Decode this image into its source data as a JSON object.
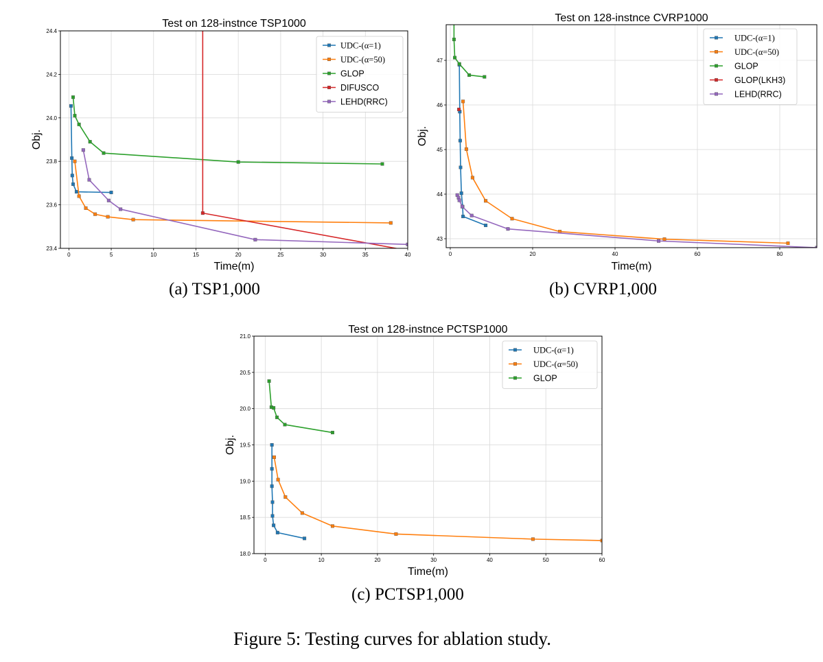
{
  "colors": {
    "blue": "#1f77b4",
    "orange": "#ff7f0e",
    "green": "#2ca02c",
    "red": "#d62728",
    "purple": "#9467bd",
    "grid": "#d9d9d9"
  },
  "figure_caption": "Figure 5: Testing curves for ablation study.",
  "chart_data": [
    {
      "id": "tsp",
      "type": "line",
      "title": "Test on 128-instnce TSP1000",
      "subcaption": "(a)  TSP1,000",
      "xlabel": "Time(m)",
      "ylabel": "Obj.",
      "xlim": [
        -1,
        40
      ],
      "ylim": [
        23.4,
        24.4
      ],
      "xticks": [
        0,
        5,
        10,
        15,
        20,
        25,
        30,
        35,
        40
      ],
      "yticks": [
        23.4,
        23.6,
        23.8,
        24.0,
        24.2,
        24.4
      ],
      "ytick_format": "1",
      "grid": true,
      "legend_position": "top-right",
      "series": [
        {
          "name": "UDC-(α=1)",
          "color": "blue",
          "font": "serif",
          "marker": true,
          "x": [
            0.25,
            0.35,
            0.4,
            0.5,
            0.9,
            5.0
          ],
          "y": [
            24.055,
            23.815,
            23.735,
            23.695,
            23.66,
            23.657
          ]
        },
        {
          "name": "UDC-(α=50)",
          "color": "orange",
          "font": "serif",
          "marker": true,
          "x": [
            0.7,
            1.2,
            2.0,
            3.1,
            4.6,
            7.6,
            38.0
          ],
          "y": [
            23.8,
            23.64,
            23.585,
            23.557,
            23.545,
            23.532,
            23.517
          ]
        },
        {
          "name": "GLOP",
          "color": "green",
          "font": "sans",
          "marker": true,
          "x": [
            0.5,
            0.7,
            1.2,
            2.5,
            4.1,
            20.0,
            37.0
          ],
          "y": [
            24.095,
            24.01,
            23.97,
            23.89,
            23.838,
            23.797,
            23.788
          ]
        },
        {
          "name": "DIFUSCO",
          "color": "red",
          "font": "sans",
          "marker": true,
          "x": [
            15.8,
            15.8,
            40.0
          ],
          "y": [
            24.45,
            23.562,
            23.39
          ]
        },
        {
          "name": "LEHD(RRC)",
          "color": "purple",
          "font": "sans",
          "marker": true,
          "x": [
            1.7,
            2.4,
            4.7,
            6.1,
            22.0,
            40.0
          ],
          "y": [
            23.852,
            23.715,
            23.62,
            23.58,
            23.44,
            23.418
          ]
        }
      ]
    },
    {
      "id": "cvrp",
      "type": "line",
      "title": "Test on 128-instnce CVRP1000",
      "subcaption": "(b)  CVRP1,000",
      "xlabel": "Time(m)",
      "ylabel": "Obj.",
      "xlim": [
        -1,
        89
      ],
      "ylim": [
        42.8,
        47.8
      ],
      "xticks": [
        0,
        20,
        40,
        60,
        80
      ],
      "yticks": [
        43,
        44,
        45,
        46,
        47
      ],
      "ytick_format": "0",
      "grid": true,
      "legend_position": "top-right",
      "series": [
        {
          "name": "UDC-(α=1)",
          "color": "blue",
          "font": "serif",
          "marker": true,
          "x": [
            2.2,
            2.3,
            2.4,
            2.5,
            2.7,
            3.0,
            3.1,
            8.6
          ],
          "y": [
            46.9,
            45.85,
            45.2,
            44.6,
            44.02,
            43.72,
            43.5,
            43.3
          ]
        },
        {
          "name": "UDC-(α=50)",
          "color": "orange",
          "font": "serif",
          "marker": true,
          "x": [
            3.1,
            3.9,
            5.4,
            8.6,
            15.0,
            26.6,
            52.0,
            82.0
          ],
          "y": [
            46.08,
            45.01,
            44.37,
            43.85,
            43.45,
            43.16,
            42.99,
            42.9
          ]
        },
        {
          "name": "GLOP",
          "color": "green",
          "font": "sans",
          "marker": true,
          "x": [
            0.9,
            0.9,
            1.1,
            2.2,
            4.6,
            8.3
          ],
          "y": [
            47.9,
            47.47,
            47.06,
            46.92,
            46.67,
            46.63
          ]
        },
        {
          "name": "GLOP(LKH3)",
          "color": "red",
          "font": "sans",
          "marker": true,
          "x": [
            2.1
          ],
          "y": [
            45.9
          ]
        },
        {
          "name": "LEHD(RRC)",
          "color": "purple",
          "font": "sans",
          "marker": true,
          "x": [
            1.7,
            2.0,
            2.2,
            2.9,
            5.2,
            14.0,
            50.6,
            89.0
          ],
          "y": [
            43.98,
            43.92,
            43.86,
            43.72,
            43.52,
            43.22,
            42.95,
            42.8
          ]
        }
      ]
    },
    {
      "id": "pctsp",
      "type": "line",
      "title": "Test on 128-instnce PCTSP1000",
      "subcaption": "(c)  PCTSP1,000",
      "xlabel": "Time(m)",
      "ylabel": "Obj.",
      "xlim": [
        -2,
        60
      ],
      "ylim": [
        18.0,
        21.0
      ],
      "xticks": [
        0,
        10,
        20,
        30,
        40,
        50,
        60
      ],
      "yticks": [
        18.0,
        18.5,
        19.0,
        19.5,
        20.0,
        20.5,
        21.0
      ],
      "ytick_format": "1",
      "grid": true,
      "legend_position": "top-right",
      "series": [
        {
          "name": "UDC-(α=1)",
          "color": "blue",
          "font": "serif",
          "marker": true,
          "x": [
            1.2,
            1.2,
            1.2,
            1.3,
            1.3,
            1.5,
            2.2,
            7.0
          ],
          "y": [
            19.5,
            19.17,
            18.93,
            18.71,
            18.52,
            18.39,
            18.29,
            18.21
          ]
        },
        {
          "name": "UDC-(α=50)",
          "color": "orange",
          "font": "serif",
          "marker": true,
          "x": [
            1.6,
            2.3,
            3.6,
            6.6,
            12.0,
            23.3,
            47.7,
            60.0
          ],
          "y": [
            19.33,
            19.02,
            18.78,
            18.56,
            18.38,
            18.27,
            18.2,
            18.18
          ]
        },
        {
          "name": "GLOP",
          "color": "green",
          "font": "sans",
          "marker": true,
          "x": [
            0.7,
            1.1,
            1.5,
            2.1,
            3.5,
            12.0
          ],
          "y": [
            20.38,
            20.02,
            20.01,
            19.88,
            19.78,
            19.67
          ]
        }
      ]
    }
  ]
}
